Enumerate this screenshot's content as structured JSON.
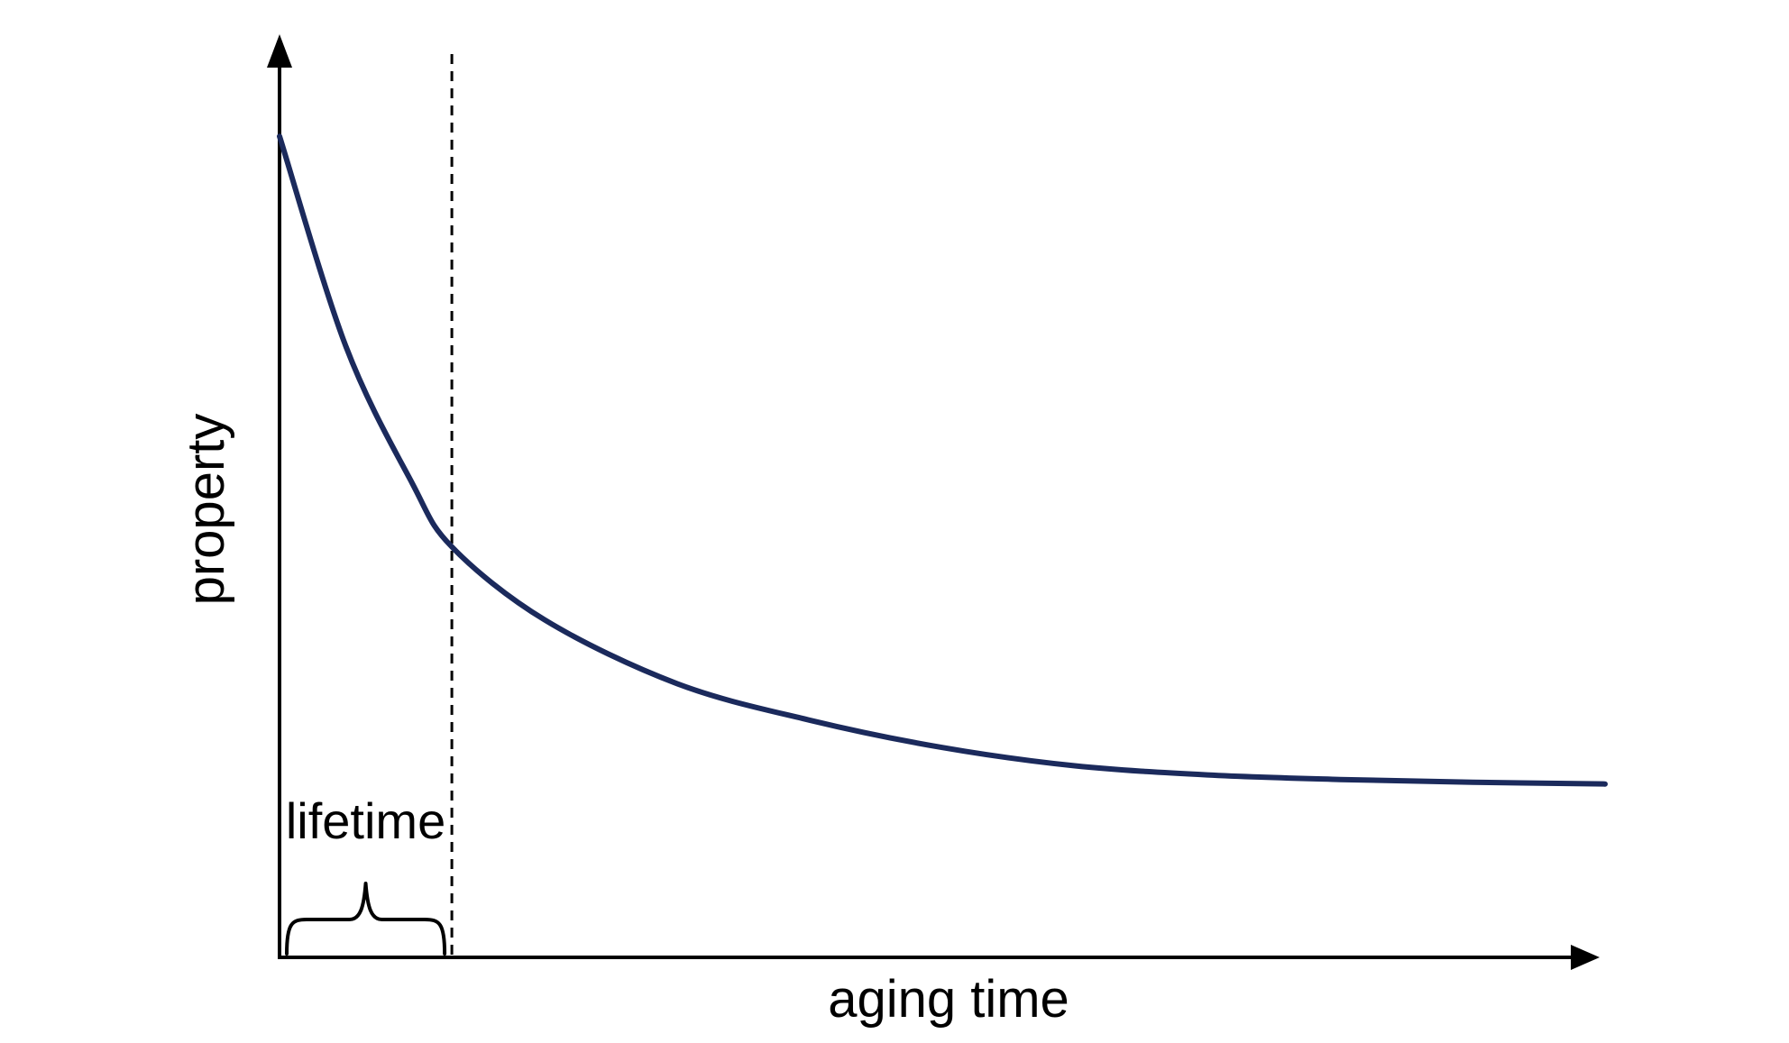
{
  "chart_data": {
    "type": "line",
    "title": "",
    "xlabel": "aging time",
    "ylabel": "property",
    "x_ticks": false,
    "y_ticks": false,
    "grid": false,
    "xlim": [
      0,
      1
    ],
    "ylim": [
      0,
      1
    ],
    "series": [
      {
        "color": "#1b2a5c",
        "x": [
          0,
          0.05,
          0.1,
          0.13,
          0.2,
          0.3,
          0.4,
          0.5,
          0.6,
          0.7,
          0.8,
          0.9,
          1
        ],
        "y": [
          0.9,
          0.67,
          0.52,
          0.45,
          0.37,
          0.3,
          0.26,
          0.23,
          0.21,
          0.2,
          0.195,
          0.192,
          0.19
        ]
      }
    ],
    "annotations": {
      "lifetime": {
        "label": "lifetime",
        "x_end": 0.13
      }
    }
  }
}
